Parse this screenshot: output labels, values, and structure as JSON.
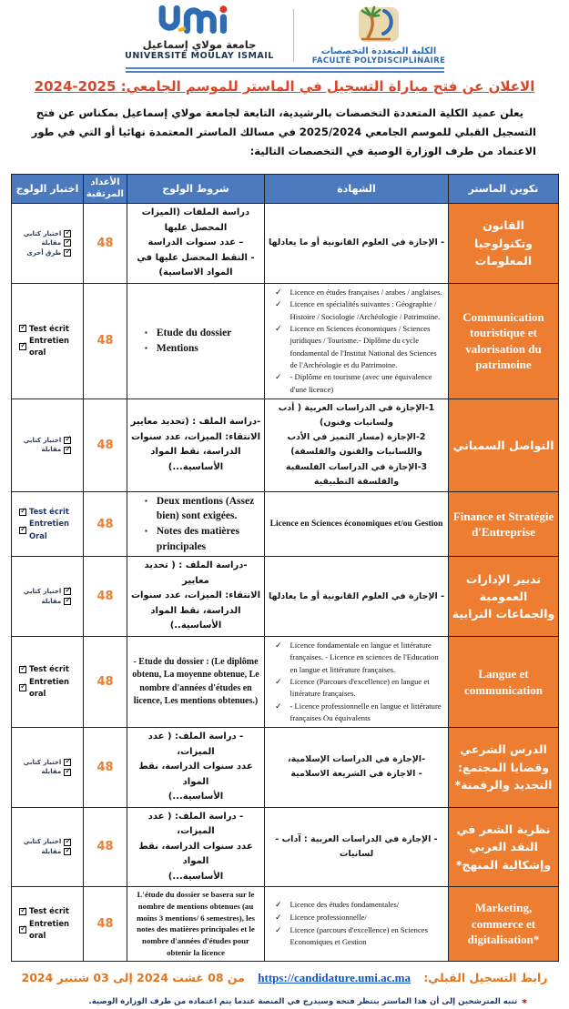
{
  "colors": {
    "header_blue": "#4b7bbe",
    "accent_orange": "#ED7D31",
    "title_red": "#d9472a",
    "link_blue": "#1155cc",
    "note_navy": "#1F3864"
  },
  "header": {
    "university_ar": "جامعة مولاي إسماعيل",
    "university_fr": "UNIVERSITÉ MOULAY ISMAIL",
    "faculty_ar": "الكلية المتعددة التخصصات",
    "faculty_fr": "FACULTÉ POLYDISCIPLINAIRE"
  },
  "title": "الاعلان عن فتح مباراة التسجيل في الماستر للموسم الجامعي: 2025-2024",
  "intro": "يعلن عميد الكلية المتعددة التخصصات بالرشيدية، التابعة لجامعة مولاي إسماعيل بمكناس عن فتح التسجيل القبلي للموسم الجامعي 2025/2024 في مسالك الماستر المعتمدة نهائيا أو التي في طور الاعتماد من طرف الوزارة الوصية في التخصصات التالية:",
  "table": {
    "headers": {
      "master": "تكوين الماستر",
      "diploma": "الشهادة",
      "conditions": "شروط الولوج",
      "seats": "الأعداد المرتقبة",
      "tests": "اختبار الولوج"
    },
    "rows": [
      {
        "master": {
          "text": "القانون وتكنولوجيا المعلومات",
          "lang": "ar"
        },
        "diploma": {
          "style": "ar-lines",
          "items": [
            "- الإجازة في العلوم القانونية أو ما يعادلها"
          ]
        },
        "conditions": {
          "style": "ar-center",
          "items": [
            "دراسة الملفات (الميزات المحصل عليها",
            "– عدد سنوات الدراسة",
            "- النقط المحصل عليها في المواد الاساسية)"
          ]
        },
        "seats": "48",
        "tests": {
          "style": "ar",
          "items": [
            "اختبار كتابي",
            "مقابلة",
            "طرق أخرى"
          ]
        }
      },
      {
        "master": {
          "text": "Communication touristique et valorisation du patrimoine",
          "lang": "fr"
        },
        "diploma": {
          "style": "fr-checks",
          "items": [
            "Licence en études françaises / arabes / anglaises.",
            "Licence en spécialités suivantes : Géographie / Histoire / Sociologie /Archéologie / Patrimoine.",
            "Licence en Sciences économiques / Sciences juridiques / Tourisme.- Diplôme du cycle fondamental de l'Institut National des Sciences de l'Archéologie et du Patrimoine.",
            "- Diplôme en tourisme (avec une équivalence d'une licence)"
          ]
        },
        "conditions": {
          "style": "fr-bullets",
          "items": [
            "Etude du dossier",
            "Mentions"
          ]
        },
        "seats": "48",
        "tests": {
          "style": "fr",
          "items": [
            "Test écrit",
            "Entretien oral"
          ]
        }
      },
      {
        "master": {
          "text": "التواصل السمياني",
          "lang": "ar"
        },
        "diploma": {
          "style": "ar-lines",
          "items": [
            "1-الإجازة في الدراسات العربية ( أدب ولسانيات وفنون)",
            "2-الإجازة (مسار التميز في الأدب واللسانيات والفنون والفلسفة)",
            "3-الإجازة في الدراسات الفلسفية والفلسفة التطبيقية"
          ]
        },
        "conditions": {
          "style": "ar-center",
          "items": [
            "-دراسة الملف : (تحديد معايير",
            "الانتقاء: الميزات، عدد سنوات",
            "الدراسة، نقط المواد الأساسية...)"
          ]
        },
        "seats": "48",
        "tests": {
          "style": "ar",
          "items": [
            "اختبار كتابي",
            "مقابلة"
          ]
        }
      },
      {
        "master": {
          "text": "Finance et Stratégie d'Entreprise",
          "lang": "fr"
        },
        "diploma": {
          "style": "fr-center",
          "items": [
            "Licence en Sciences économiques et/ou Gestion"
          ]
        },
        "conditions": {
          "style": "fr-bullets",
          "items": [
            "Deux mentions (Assez bien) sont exigées.",
            "Notes des matières principales"
          ]
        },
        "seats": "48",
        "tests": {
          "style": "fr-navy",
          "items": [
            "Test écrit",
            "Entretien Oral"
          ]
        }
      },
      {
        "master": {
          "text": "تدبير الإدارات العمومية والجماعات الترابية",
          "lang": "ar"
        },
        "diploma": {
          "style": "ar-lines",
          "items": [
            "- الإجازة في العلوم القانونية أو ما يعادلها"
          ]
        },
        "conditions": {
          "style": "ar-center",
          "items": [
            "-دراسة الملف : ( تحديد معايير",
            "الانتقاء: الميزات، عدد سنوات",
            "الدراسة، نقط المواد الأساسية..)"
          ]
        },
        "seats": "48",
        "tests": {
          "style": "ar",
          "items": [
            "اختبار كتابي",
            "مقابلة"
          ]
        }
      },
      {
        "master": {
          "text": "Langue et communication",
          "lang": "fr"
        },
        "diploma": {
          "style": "fr-checks",
          "items": [
            "Licence fondamentale en langue et littérature françaises. - Licence en sciences de l'Education en langue et littérature françaises.",
            "Licence (Parcours d'excellence) en langue et littérature françaises.",
            "- Licence professionnelle en langue et littérature françaises Ou équivalents"
          ]
        },
        "conditions": {
          "style": "fr-center",
          "items": [
            "- Etude du dossier : (Le diplôme obtenu, La moyenne obtenue, Le nombre d'années d'études en licence, Les mentions obtenues.)"
          ]
        },
        "seats": "48",
        "tests": {
          "style": "fr",
          "items": [
            "Test écrit",
            "Entretien oral"
          ]
        }
      },
      {
        "master": {
          "text": "الدرس الشرعي وقضايا المجتمع: التجديد والرقمنة*",
          "lang": "ar"
        },
        "diploma": {
          "style": "ar-lines",
          "items": [
            "-الإجازة في الدراسات الإسلامية،",
            "- الاجازة في الشريعة الاسلامية"
          ]
        },
        "conditions": {
          "style": "ar-center",
          "items": [
            "- دراسة الملف: ( عدد الميزات،",
            "عدد سنوات الدراسة، نقط المواد",
            "الأساسية...)"
          ]
        },
        "seats": "48",
        "tests": {
          "style": "ar",
          "items": [
            "اختبار كتابي",
            "مقابلة"
          ]
        }
      },
      {
        "master": {
          "text": "نظرية الشعر في النقد العربي وإشكالية المنهج*",
          "lang": "ar"
        },
        "diploma": {
          "style": "ar-lines",
          "items": [
            "- الإجازة في الدراسات العربية : آداب - لسانيات"
          ]
        },
        "conditions": {
          "style": "ar-center",
          "items": [
            "- دراسة الملف: ( عدد الميزات،",
            "عدد سنوات الدراسة، نقط المواد",
            "الأساسية...)"
          ]
        },
        "seats": "48",
        "tests": {
          "style": "ar",
          "items": [
            "اختبار كتابي",
            "مقابلة"
          ]
        }
      },
      {
        "master": {
          "text": "Marketing, commerce et digitalisation*",
          "lang": "fr"
        },
        "diploma": {
          "style": "fr-checks",
          "items": [
            "Licence des études fondamentales/",
            "Licence professionnelle/",
            "Licence (parcours d'excellence) en Sciences Economiques et Gestion"
          ]
        },
        "conditions": {
          "style": "fr-center-small",
          "items": [
            "L'étude du dossier se basera sur le nombre de mentions obtenues (au moins 3 mentions/ 6 semestres), les notes des matières principales et le nombre d'années d'études pour obtenir la licence"
          ]
        },
        "seats": "48",
        "tests": {
          "style": "fr",
          "items": [
            "Test écrit",
            "Entretien oral"
          ]
        }
      }
    ]
  },
  "footer": {
    "link_label": "رابط التسجيل القبلي:",
    "link_url": "https://candidature.umi.ac.ma",
    "dates": "من 08 غشت 2024 إلى 03 شتنبر 2024",
    "note_star": "*",
    "note": "ننبه المترشحين إلى أن هذا الماستر ينتظر فتحه وسيدرج في المنصة عندما يتم اعتماده من طرف الوزارة الوصية."
  }
}
